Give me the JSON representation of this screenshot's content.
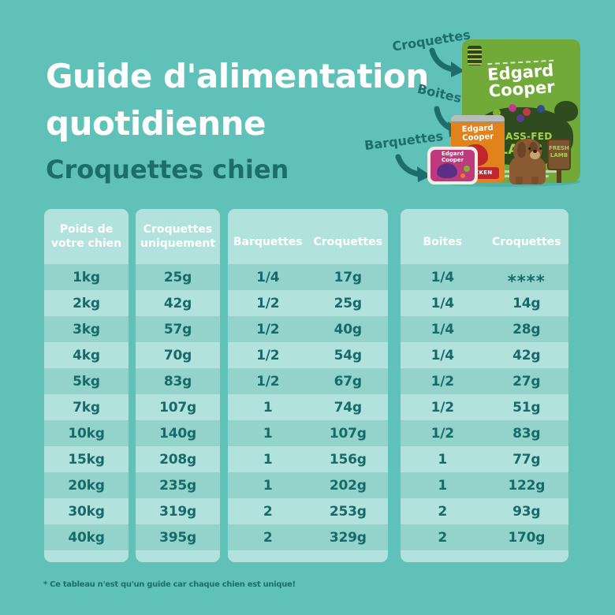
{
  "colors": {
    "background": "#60c1b9",
    "panel_light": "#b2e2dd",
    "panel_dark": "#93d3cc",
    "text_dark": "#166a68",
    "label_teal": "#1b6e6c",
    "header_white": "#ffffff",
    "bag_green": "#72aa3a",
    "bag_dark_green": "#2f4b20",
    "bag_text_green": "#a9d14e",
    "can_orange": "#e0831c",
    "banner_red": "#c0272d",
    "tray_pink": "#bf3a7d",
    "dog_brown": "#8a5a33",
    "sign_brown": "#7a5630"
  },
  "header": {
    "title_line1": "Guide d'alimentation",
    "title_line2": "quotidienne",
    "subtitle": "Croquettes chien"
  },
  "product_callouts": {
    "kibble": "Croquettes",
    "cans": "Boites",
    "trays": "Barquettes"
  },
  "products": {
    "bag": {
      "brand_line1": "Edgard",
      "brand_line2": "Cooper",
      "variety_line1": "GRASS-FED",
      "variety_line2": "LAMB"
    },
    "sign": {
      "line1": "FRESH",
      "line2": "LAMB"
    },
    "can": {
      "brand_line1": "Edgard",
      "brand_line2": "Cooper",
      "banner": "CHICKEN"
    },
    "tray": {
      "brand": "Edgard Cooper"
    }
  },
  "table": {
    "weight_header_line1": "Poids de",
    "weight_header_line2": "votre chien",
    "kibble_header_line1": "Croquettes",
    "kibble_header_line2": "uniquement",
    "tray_col_header": "Barquettes",
    "tray_kibble_header": "Croquettes",
    "can_col_header": "Boites",
    "can_kibble_header": "Croquettes",
    "rows": [
      {
        "weight": "1kg",
        "kibble_only": "25g",
        "trays": "1/4",
        "tray_kibble": "17g",
        "cans": "1/4",
        "can_kibble": "****"
      },
      {
        "weight": "2kg",
        "kibble_only": "42g",
        "trays": "1/2",
        "tray_kibble": "25g",
        "cans": "1/4",
        "can_kibble": "14g"
      },
      {
        "weight": "3kg",
        "kibble_only": "57g",
        "trays": "1/2",
        "tray_kibble": "40g",
        "cans": "1/4",
        "can_kibble": "28g"
      },
      {
        "weight": "4kg",
        "kibble_only": "70g",
        "trays": "1/2",
        "tray_kibble": "54g",
        "cans": "1/4",
        "can_kibble": "42g"
      },
      {
        "weight": "5kg",
        "kibble_only": "83g",
        "trays": "1/2",
        "tray_kibble": "67g",
        "cans": "1/2",
        "can_kibble": "27g"
      },
      {
        "weight": "7kg",
        "kibble_only": "107g",
        "trays": "1",
        "tray_kibble": "74g",
        "cans": "1/2",
        "can_kibble": "51g"
      },
      {
        "weight": "10kg",
        "kibble_only": "140g",
        "trays": "1",
        "tray_kibble": "107g",
        "cans": "1/2",
        "can_kibble": "83g"
      },
      {
        "weight": "15kg",
        "kibble_only": "208g",
        "trays": "1",
        "tray_kibble": "156g",
        "cans": "1",
        "can_kibble": "77g"
      },
      {
        "weight": "20kg",
        "kibble_only": "235g",
        "trays": "1",
        "tray_kibble": "202g",
        "cans": "1",
        "can_kibble": "122g"
      },
      {
        "weight": "30kg",
        "kibble_only": "319g",
        "trays": "2",
        "tray_kibble": "253g",
        "cans": "2",
        "can_kibble": "93g"
      },
      {
        "weight": "40kg",
        "kibble_only": "395g",
        "trays": "2",
        "tray_kibble": "329g",
        "cans": "2",
        "can_kibble": "170g"
      }
    ]
  },
  "footnote": "* Ce tableau n'est qu'un guide car chaque chien est unique!"
}
